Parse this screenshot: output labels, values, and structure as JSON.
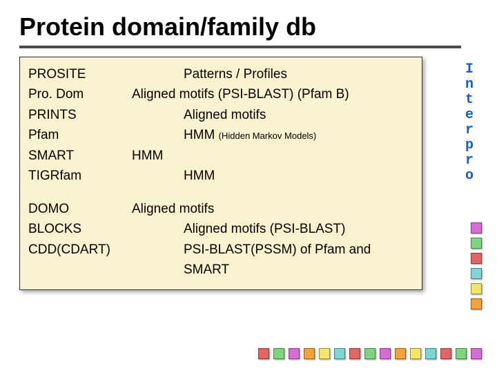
{
  "title": "Protein domain/family db",
  "content_background": "#f8f2ce",
  "rule_color": "#4b4b4b",
  "group1": [
    {
      "db": "PROSITE",
      "method": "Patterns / Profiles",
      "indent": 75
    },
    {
      "db": "Pro. Dom",
      "method": "Aligned motifs (PSI-BLAST) (Pfam B)",
      "indent": 0
    },
    {
      "db": "PRINTS",
      "method": "Aligned motifs",
      "indent": 75
    },
    {
      "db": "Pfam",
      "method": "HMM",
      "note": "(Hidden Markov Models)",
      "indent": 75
    },
    {
      "db": "SMART",
      "method": "HMM",
      "indent": 0
    },
    {
      "db": "TIGRfam",
      "method": "HMM",
      "indent": 75
    }
  ],
  "group2": [
    {
      "db": "DOMO",
      "method": "Aligned motifs",
      "indent": 0
    },
    {
      "db": "BLOCKS",
      "method": "Aligned motifs (PSI-BLAST)",
      "indent": 75
    },
    {
      "db": "CDD(CDART)",
      "method": "PSI-BLAST(PSSM) of Pfam and SMART",
      "indent": 75
    }
  ],
  "sidebar_text": "Interpro",
  "sidebar_color": "#1a5fb4",
  "deco_colors": {
    "magenta": "#d46dd4",
    "green": "#7fd47f",
    "red": "#e06666",
    "cyan": "#7fd4d4",
    "yellow": "#f2e66b",
    "orange": "#f2a23a"
  },
  "vertical_sequence": [
    "magenta",
    "green",
    "red",
    "cyan",
    "yellow",
    "orange"
  ],
  "horizontal_sequence": [
    "magenta",
    "green",
    "red",
    "cyan",
    "yellow",
    "orange",
    "magenta",
    "green",
    "red",
    "cyan",
    "yellow",
    "orange",
    "magenta",
    "green",
    "red"
  ]
}
